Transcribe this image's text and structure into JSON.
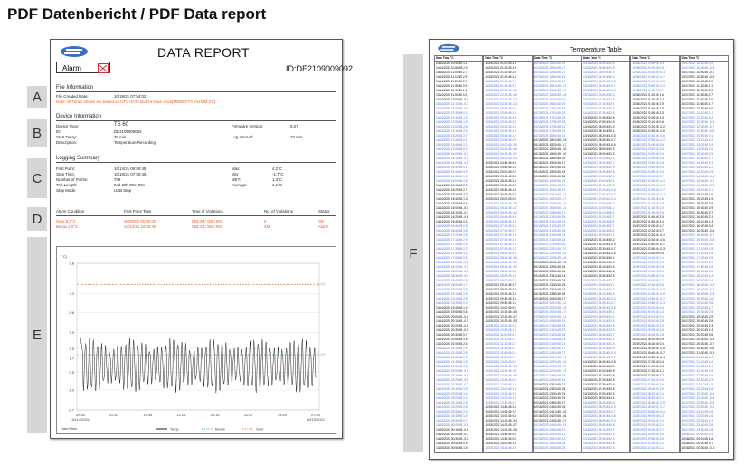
{
  "header": {
    "title": "PDF Datenbericht / PDF Data report"
  },
  "labels": [
    "A",
    "B",
    "C",
    "D",
    "E",
    "F"
  ],
  "report": {
    "title": "DATA REPORT",
    "alarm_label": "Alarm",
    "id": "ID:DE2109009092",
    "file_info": {
      "heading": "File Information",
      "created_label": "File Created Date:",
      "created_value": "10/19/21 07:54:02",
      "note": "Note: All Times shown are based on UTC+0:00 and 24-Hour clock[MM/DD/YY HH:MM:SS]"
    },
    "device_info": {
      "heading": "Device Information",
      "rows": [
        {
          "k": "Device Type:",
          "v": "TS 60"
        },
        {
          "k": "ID:",
          "v": "DE2109009092"
        },
        {
          "k": "Start Delay:",
          "v": "30 min"
        },
        {
          "k": "Description:",
          "v": "Temperature Recording"
        }
      ],
      "fw_label": "Firmware Version:",
      "fw_value": "5.07",
      "li_label": "Log Interval:",
      "li_value": "10 min"
    },
    "logging": {
      "heading": "Logging Summary",
      "left": [
        {
          "k": "First Point:",
          "v": "10/14/21 09:50:45"
        },
        {
          "k": "Stop Time:",
          "v": "10/19/21 07:50:45"
        },
        {
          "k": "Number of Points:",
          "v": "709"
        },
        {
          "k": "Trip Length:",
          "v": "04d 22h 00m 00s"
        },
        {
          "k": "Stop Mode:",
          "v": "USB Stop"
        }
      ],
      "right": [
        {
          "k": "Max:",
          "v": "4.2°C"
        },
        {
          "k": "Min:",
          "v": "-1.7°C"
        },
        {
          "k": "MKT:",
          "v": "1.3°C"
        },
        {
          "k": "Average:",
          "v": "1.1°C"
        }
      ]
    },
    "alarm_table": {
      "headers": [
        "Alarm Condition",
        "First Point Time",
        "Time of Violations",
        "No. of Violations",
        "Status"
      ],
      "rows": [
        [
          "Over 8.0°C",
          "00/00/00 00:00:00",
          "00d 00h 00m 00s",
          "0",
          "OK"
        ],
        [
          "Below 2.0°C",
          "10/14/21 10:00:45",
          "03d 02h 50m 00s",
          "450",
          "Alarm"
        ]
      ]
    }
  },
  "chart_data": {
    "type": "line",
    "ylabel": "[°C]",
    "xlabel": "Date/Time",
    "ylim": [
      -2.7,
      9.8
    ],
    "yticks": [
      "9.8",
      "7.2",
      "5.6",
      "3.9",
      "2.5",
      "1.7",
      "0.5",
      "-1.0",
      "-2.7"
    ],
    "xticks": [
      "09:50\n10/14/2021",
      "02:43",
      "19:35",
      "12:25",
      "05:18",
      "22:07",
      "14:59",
      "07:50\n10/19/2021"
    ],
    "series": [
      {
        "name": "Temp",
        "color": "#222222"
      },
      {
        "name": "Below",
        "value": 2.0,
        "color": "#2aa58a"
      },
      {
        "name": "Over",
        "value": 8.0,
        "color": "#e07a3a"
      }
    ],
    "line_labels": {
      "over": "8.0°C",
      "below": "2.0°C"
    }
  },
  "table_page": {
    "title": "Temperature Table",
    "col_headers": [
      "Date",
      "Time",
      "°C"
    ],
    "columns": 6
  }
}
